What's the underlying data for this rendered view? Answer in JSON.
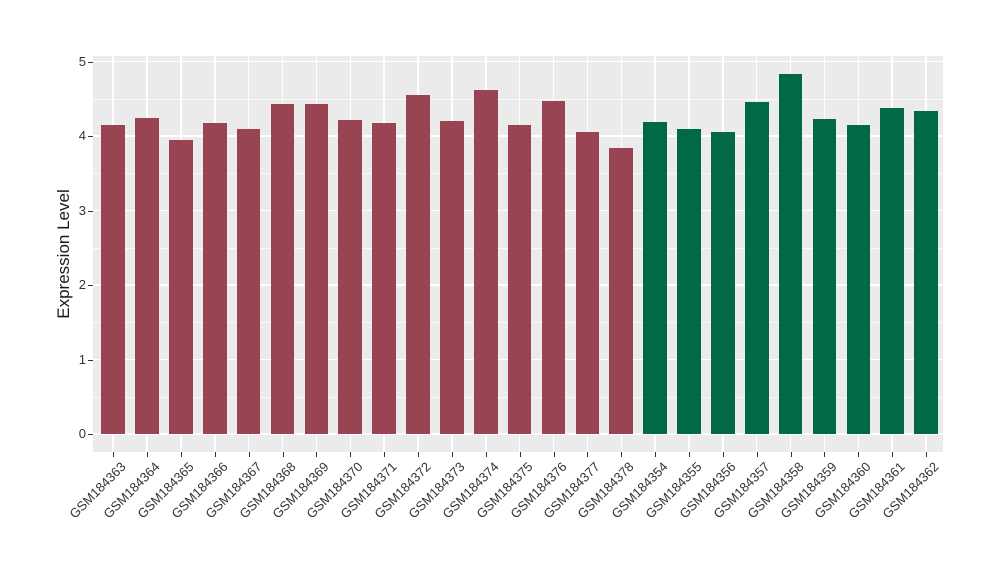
{
  "figure": {
    "background": "#ffffff",
    "panel_background": "#ebebeb",
    "grid_color": "#ffffff",
    "tick_color": "#333333",
    "tick_label_color": "#333333",
    "axis_title_color": "#1a1a1a"
  },
  "chart_data": {
    "type": "bar",
    "title": "",
    "xlabel": "",
    "ylabel": "Expression Level",
    "ylim": [
      0,
      5
    ],
    "yticks": [
      0,
      1,
      2,
      3,
      4,
      5
    ],
    "ytick_labels": [
      "0",
      "1",
      "2",
      "3",
      "4",
      "5"
    ],
    "grid": true,
    "legend_position": "none",
    "x_label_angle_deg": 45,
    "categories": [
      "GSM184363",
      "GSM184364",
      "GSM184365",
      "GSM184366",
      "GSM184367",
      "GSM184368",
      "GSM184369",
      "GSM184370",
      "GSM184371",
      "GSM184372",
      "GSM184373",
      "GSM184374",
      "GSM184375",
      "GSM184376",
      "GSM184377",
      "GSM184378",
      "GSM184354",
      "GSM184355",
      "GSM184356",
      "GSM184357",
      "GSM184358",
      "GSM184359",
      "GSM184360",
      "GSM184361",
      "GSM184362"
    ],
    "values": [
      4.15,
      4.24,
      3.95,
      4.17,
      4.1,
      4.43,
      4.43,
      4.22,
      4.17,
      4.55,
      4.2,
      4.62,
      4.15,
      4.47,
      4.05,
      3.84,
      4.19,
      4.09,
      4.06,
      4.46,
      4.83,
      4.23,
      4.15,
      4.37,
      4.34
    ],
    "bar_colors": [
      "#994453",
      "#994453",
      "#994453",
      "#994453",
      "#994453",
      "#994453",
      "#994453",
      "#994453",
      "#994453",
      "#994453",
      "#994453",
      "#994453",
      "#994453",
      "#994453",
      "#994453",
      "#994453",
      "#016948",
      "#016948",
      "#016948",
      "#016948",
      "#016948",
      "#016948",
      "#016948",
      "#016948",
      "#016948"
    ],
    "color_groups": [
      {
        "color": "#994453",
        "first_category": "GSM184363",
        "last_category": "GSM184378",
        "count": 16
      },
      {
        "color": "#016948",
        "first_category": "GSM184354",
        "last_category": "GSM184362",
        "count": 9
      }
    ]
  }
}
